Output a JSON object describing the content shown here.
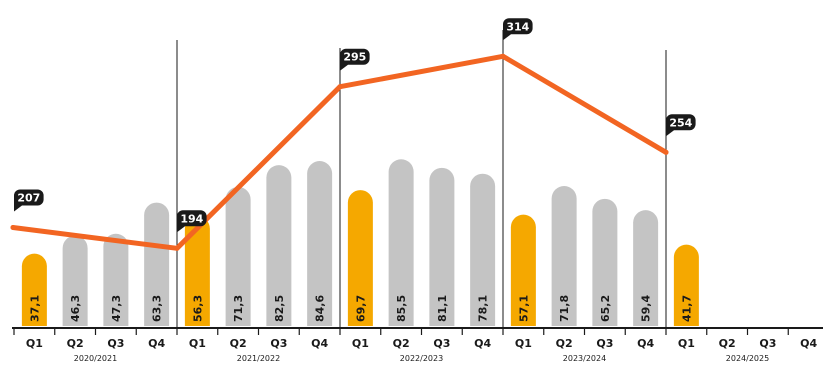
{
  "chart_data": {
    "type": "bar",
    "categories": [
      "Q1",
      "Q2",
      "Q3",
      "Q4",
      "Q1",
      "Q2",
      "Q3",
      "Q4",
      "Q1",
      "Q2",
      "Q3",
      "Q4",
      "Q1",
      "Q2",
      "Q3",
      "Q4",
      "Q1",
      "Q2",
      "Q3",
      "Q4"
    ],
    "fiscal_years": [
      "2020/2021",
      "2021/2022",
      "2022/2023",
      "2023/2024",
      "2024/2025"
    ],
    "values": [
      37.1,
      46.3,
      47.3,
      63.3,
      56.3,
      71.3,
      82.5,
      84.6,
      69.7,
      85.5,
      81.1,
      78.1,
      57.1,
      71.8,
      65.2,
      59.4,
      41.7,
      null,
      null,
      null
    ],
    "value_labels": [
      "37,1",
      "46,3",
      "47,3",
      "63,3",
      "56,3",
      "71,3",
      "82,5",
      "84,6",
      "69,7",
      "85,5",
      "81,1",
      "78,1",
      "57,1",
      "71,8",
      "65,2",
      "59,4",
      "41,7",
      "",
      "",
      ""
    ],
    "line_series": {
      "values": [
        207,
        194,
        295,
        314,
        254
      ],
      "labels": [
        "207",
        "194",
        "295",
        "314",
        "254"
      ]
    },
    "colors": {
      "q1_bar": "#f5a800",
      "other_bar": "#c4c4c4",
      "line": "#f26522",
      "line_label_bg": "#1a1a1a",
      "axis": "#1a1a1a"
    },
    "grid": false,
    "legend": "none",
    "title": "",
    "xlabel": "",
    "ylabel": ""
  }
}
